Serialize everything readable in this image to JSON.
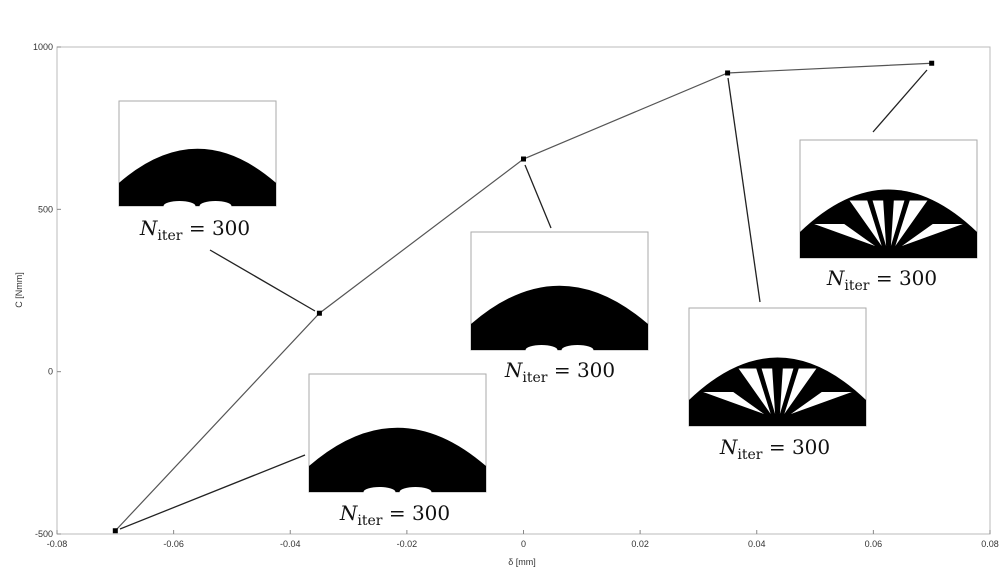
{
  "chart_data": {
    "type": "line",
    "x": [
      -0.07,
      -0.035,
      0,
      0.035,
      0.07
    ],
    "series": [
      {
        "color": "#555555",
        "marker_color": "#000000",
        "values": [
          -490,
          180,
          655,
          920,
          950
        ]
      }
    ],
    "xlabel": "δ [mm]",
    "ylabel": "C [Nmm]",
    "xlim": [
      -0.08,
      0.08
    ],
    "xticks": [
      -0.08,
      -0.06,
      -0.04,
      -0.02,
      0,
      0.02,
      0.04,
      0.06,
      0.08
    ],
    "ylim": [
      -500,
      1000
    ],
    "yticks": [
      -500,
      0,
      500,
      1000
    ],
    "annotations": [
      {
        "text": "N",
        "subscript": "iter",
        "suffix": " = 300"
      },
      {
        "text": "N",
        "subscript": "iter",
        "suffix": " = 300"
      },
      {
        "text": "N",
        "subscript": "iter",
        "suffix": " = 300"
      },
      {
        "text": "N",
        "subscript": "iter",
        "suffix": " = 300"
      },
      {
        "text": "N",
        "subscript": "iter",
        "suffix": " = 300"
      }
    ]
  }
}
